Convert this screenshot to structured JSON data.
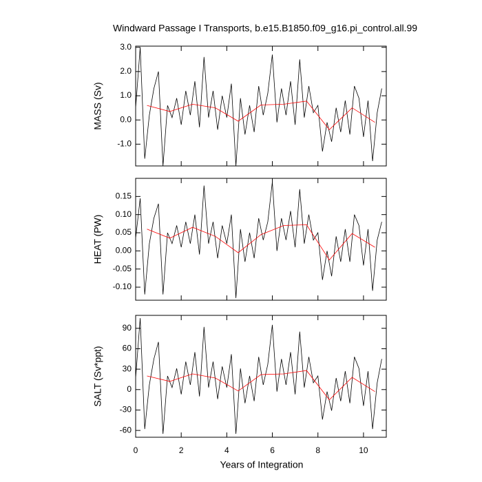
{
  "chart_data": [
    {
      "type": "line",
      "title": "Windward Passage I Transports, b.e15.B1850.f09_g16.pi_control.all.99",
      "y_label": "MASS (Sv)",
      "xlim": [
        0,
        11
      ],
      "ylim": [
        -1.9,
        3.05
      ],
      "yticks": [
        {
          "value": 3,
          "label": "3.0"
        },
        {
          "value": 2,
          "label": "2.0"
        },
        {
          "value": 1,
          "label": "1.0"
        },
        {
          "value": 0,
          "label": "0.0"
        },
        {
          "value": -1,
          "label": "-1.0"
        }
      ],
      "series": [
        {
          "color": "#000000",
          "x": [
            0,
            0.2,
            0.4,
            0.6,
            0.8,
            1.0,
            1.2,
            1.4,
            1.6,
            1.8,
            2.0,
            2.2,
            2.4,
            2.6,
            2.8,
            3.0,
            3.2,
            3.4,
            3.6,
            3.8,
            4.0,
            4.2,
            4.4,
            4.6,
            4.8,
            5.0,
            5.2,
            5.4,
            5.6,
            5.8,
            6.0,
            6.2,
            6.4,
            6.6,
            6.8,
            7.0,
            7.2,
            7.4,
            7.6,
            7.8,
            8.0,
            8.2,
            8.4,
            8.6,
            8.8,
            9.0,
            9.2,
            9.4,
            9.6,
            9.8,
            10.0,
            10.2,
            10.4,
            10.6,
            10.8
          ],
          "values": [
            0.5,
            3.0,
            -1.6,
            0.2,
            1.3,
            2.0,
            -1.9,
            0.6,
            0.1,
            0.9,
            -0.2,
            1.2,
            0.2,
            1.6,
            -0.3,
            2.6,
            0.1,
            1.2,
            -0.4,
            1.0,
            0.1,
            1.5,
            -1.9,
            0.9,
            -0.6,
            0.6,
            -0.5,
            1.4,
            0.2,
            1.1,
            2.7,
            -0.1,
            1.3,
            0.2,
            1.6,
            -0.2,
            2.5,
            0.1,
            1.4,
            0.3,
            0.6,
            -1.3,
            -0.1,
            -0.9,
            0.5,
            -0.5,
            0.8,
            -0.6,
            1.4,
            0.9,
            -0.7,
            0.8,
            -1.7,
            0.3,
            1.3
          ]
        },
        {
          "color": "#ff0000",
          "x": [
            0.5,
            1.5,
            2.5,
            3.5,
            4.5,
            5.5,
            6.5,
            7.5,
            8.5,
            9.5,
            10.5
          ],
          "values": [
            0.6,
            0.35,
            0.65,
            0.5,
            -0.05,
            0.62,
            0.65,
            0.78,
            -0.4,
            0.5,
            -0.1
          ]
        }
      ]
    },
    {
      "type": "line",
      "y_label": "HEAT (PW)",
      "xlim": [
        0,
        11
      ],
      "ylim": [
        -0.136,
        0.2
      ],
      "yticks": [
        0.15,
        {
          "value": 0.1,
          "label": "0.10"
        },
        0.05,
        {
          "value": 0,
          "label": "0.00"
        },
        -0.05,
        {
          "value": -0.1,
          "label": "-0.10"
        }
      ],
      "series": [
        {
          "color": "#000000",
          "x": [
            0,
            0.2,
            0.4,
            0.6,
            0.8,
            1.0,
            1.2,
            1.4,
            1.6,
            1.8,
            2.0,
            2.2,
            2.4,
            2.6,
            2.8,
            3.0,
            3.2,
            3.4,
            3.6,
            3.8,
            4.0,
            4.2,
            4.4,
            4.6,
            4.8,
            5.0,
            5.2,
            5.4,
            5.6,
            5.8,
            6.0,
            6.2,
            6.4,
            6.6,
            6.8,
            7.0,
            7.2,
            7.4,
            7.6,
            7.8,
            8.0,
            8.2,
            8.4,
            8.6,
            8.8,
            9.0,
            9.2,
            9.4,
            9.6,
            9.8,
            10.0,
            10.2,
            10.4,
            10.6,
            10.8
          ],
          "values": [
            0.035,
            0.145,
            -0.12,
            0.02,
            0.09,
            0.13,
            -0.12,
            0.05,
            0.02,
            0.07,
            0.01,
            0.08,
            0.02,
            0.1,
            -0.01,
            0.18,
            0.02,
            0.08,
            -0.02,
            0.07,
            0.02,
            0.1,
            -0.13,
            0.06,
            -0.03,
            0.05,
            -0.02,
            0.09,
            0.03,
            0.08,
            0.19,
            0.0,
            0.09,
            0.03,
            0.11,
            0.01,
            0.17,
            0.02,
            0.1,
            0.03,
            0.05,
            -0.08,
            0.0,
            -0.07,
            0.04,
            -0.03,
            0.06,
            -0.03,
            0.1,
            0.07,
            -0.04,
            0.06,
            -0.11,
            0.03,
            0.08
          ]
        },
        {
          "color": "#ff0000",
          "x": [
            0.5,
            1.5,
            2.5,
            3.5,
            4.5,
            5.5,
            6.5,
            7.5,
            8.5,
            9.5,
            10.5
          ],
          "values": [
            0.06,
            0.035,
            0.065,
            0.04,
            -0.005,
            0.045,
            0.07,
            0.072,
            -0.025,
            0.048,
            0.01
          ]
        }
      ]
    },
    {
      "type": "line",
      "y_label": "SALT (Sv*ppt)",
      "x_label": "Years of Integration",
      "xlim": [
        0,
        11
      ],
      "ylim": [
        -70,
        109
      ],
      "xticks": [
        0,
        2,
        4,
        6,
        8,
        10
      ],
      "yticks": [
        90,
        60,
        30,
        0,
        -30,
        -60
      ],
      "series": [
        {
          "color": "#000000",
          "x": [
            0,
            0.2,
            0.4,
            0.6,
            0.8,
            1.0,
            1.2,
            1.4,
            1.6,
            1.8,
            2.0,
            2.2,
            2.4,
            2.6,
            2.8,
            3.0,
            3.2,
            3.4,
            3.6,
            3.8,
            4.0,
            4.2,
            4.4,
            4.6,
            4.8,
            5.0,
            5.2,
            5.4,
            5.6,
            5.8,
            6.0,
            6.2,
            6.4,
            6.6,
            6.8,
            7.0,
            7.2,
            7.4,
            7.6,
            7.8,
            8.0,
            8.2,
            8.4,
            8.6,
            8.8,
            9.0,
            9.2,
            9.4,
            9.6,
            9.8,
            10.0,
            10.2,
            10.4,
            10.6,
            10.8
          ],
          "values": [
            17,
            105,
            -58,
            7,
            45,
            70,
            -65,
            20,
            3,
            31,
            -7,
            41,
            7,
            55,
            -10,
            92,
            3,
            41,
            -14,
            34,
            3,
            52,
            -65,
            31,
            -20,
            20,
            -17,
            48,
            7,
            37,
            95,
            -3,
            45,
            7,
            55,
            -7,
            85,
            3,
            48,
            10,
            20,
            -44,
            -3,
            -31,
            17,
            -17,
            27,
            -20,
            48,
            31,
            -24,
            27,
            -58,
            10,
            45
          ]
        },
        {
          "color": "#ff0000",
          "x": [
            0.5,
            1.5,
            2.5,
            3.5,
            4.5,
            5.5,
            6.5,
            7.5,
            8.5,
            9.5,
            10.5
          ],
          "values": [
            20,
            12,
            23,
            17,
            -2,
            22,
            23,
            28,
            -15,
            18,
            -3
          ]
        }
      ]
    }
  ]
}
